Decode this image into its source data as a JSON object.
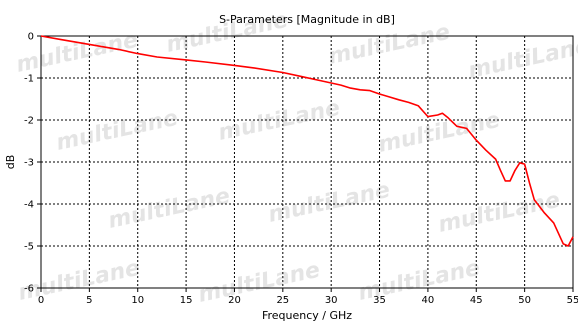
{
  "watermark": "multiLane",
  "chart_data": {
    "type": "line",
    "title": "S-Parameters [Magnitude in dB]",
    "xlabel": "Frequency / GHz",
    "ylabel": "dB",
    "xlim": [
      0,
      55
    ],
    "ylim": [
      -6,
      0
    ],
    "xticks": [
      0,
      5,
      10,
      15,
      20,
      25,
      30,
      35,
      40,
      45,
      50,
      55
    ],
    "yticks": [
      0,
      -1,
      -2,
      -3,
      -4,
      -5,
      -6
    ],
    "grid": "dashed",
    "series": [
      {
        "color": "#ff0000",
        "x": [
          0,
          2,
          5,
          8,
          10,
          12,
          15,
          17,
          20,
          22,
          25,
          27,
          29,
          31,
          32,
          33,
          34,
          35,
          36,
          37,
          38,
          39,
          40,
          41,
          41.5,
          42,
          43,
          44,
          45,
          46,
          47,
          47.5,
          48,
          48.5,
          49,
          49.5,
          50,
          50.5,
          51,
          52,
          53,
          54,
          54.5,
          55
        ],
        "y": [
          0,
          -0.08,
          -0.2,
          -0.32,
          -0.42,
          -0.5,
          -0.57,
          -0.62,
          -0.7,
          -0.76,
          -0.87,
          -0.97,
          -1.07,
          -1.17,
          -1.24,
          -1.28,
          -1.3,
          -1.38,
          -1.45,
          -1.52,
          -1.58,
          -1.66,
          -1.92,
          -1.88,
          -1.84,
          -1.93,
          -2.15,
          -2.2,
          -2.48,
          -2.72,
          -2.93,
          -3.2,
          -3.45,
          -3.45,
          -3.2,
          -3.02,
          -3.05,
          -3.5,
          -3.9,
          -4.2,
          -4.45,
          -4.95,
          -5.0,
          -4.78
        ]
      }
    ]
  }
}
